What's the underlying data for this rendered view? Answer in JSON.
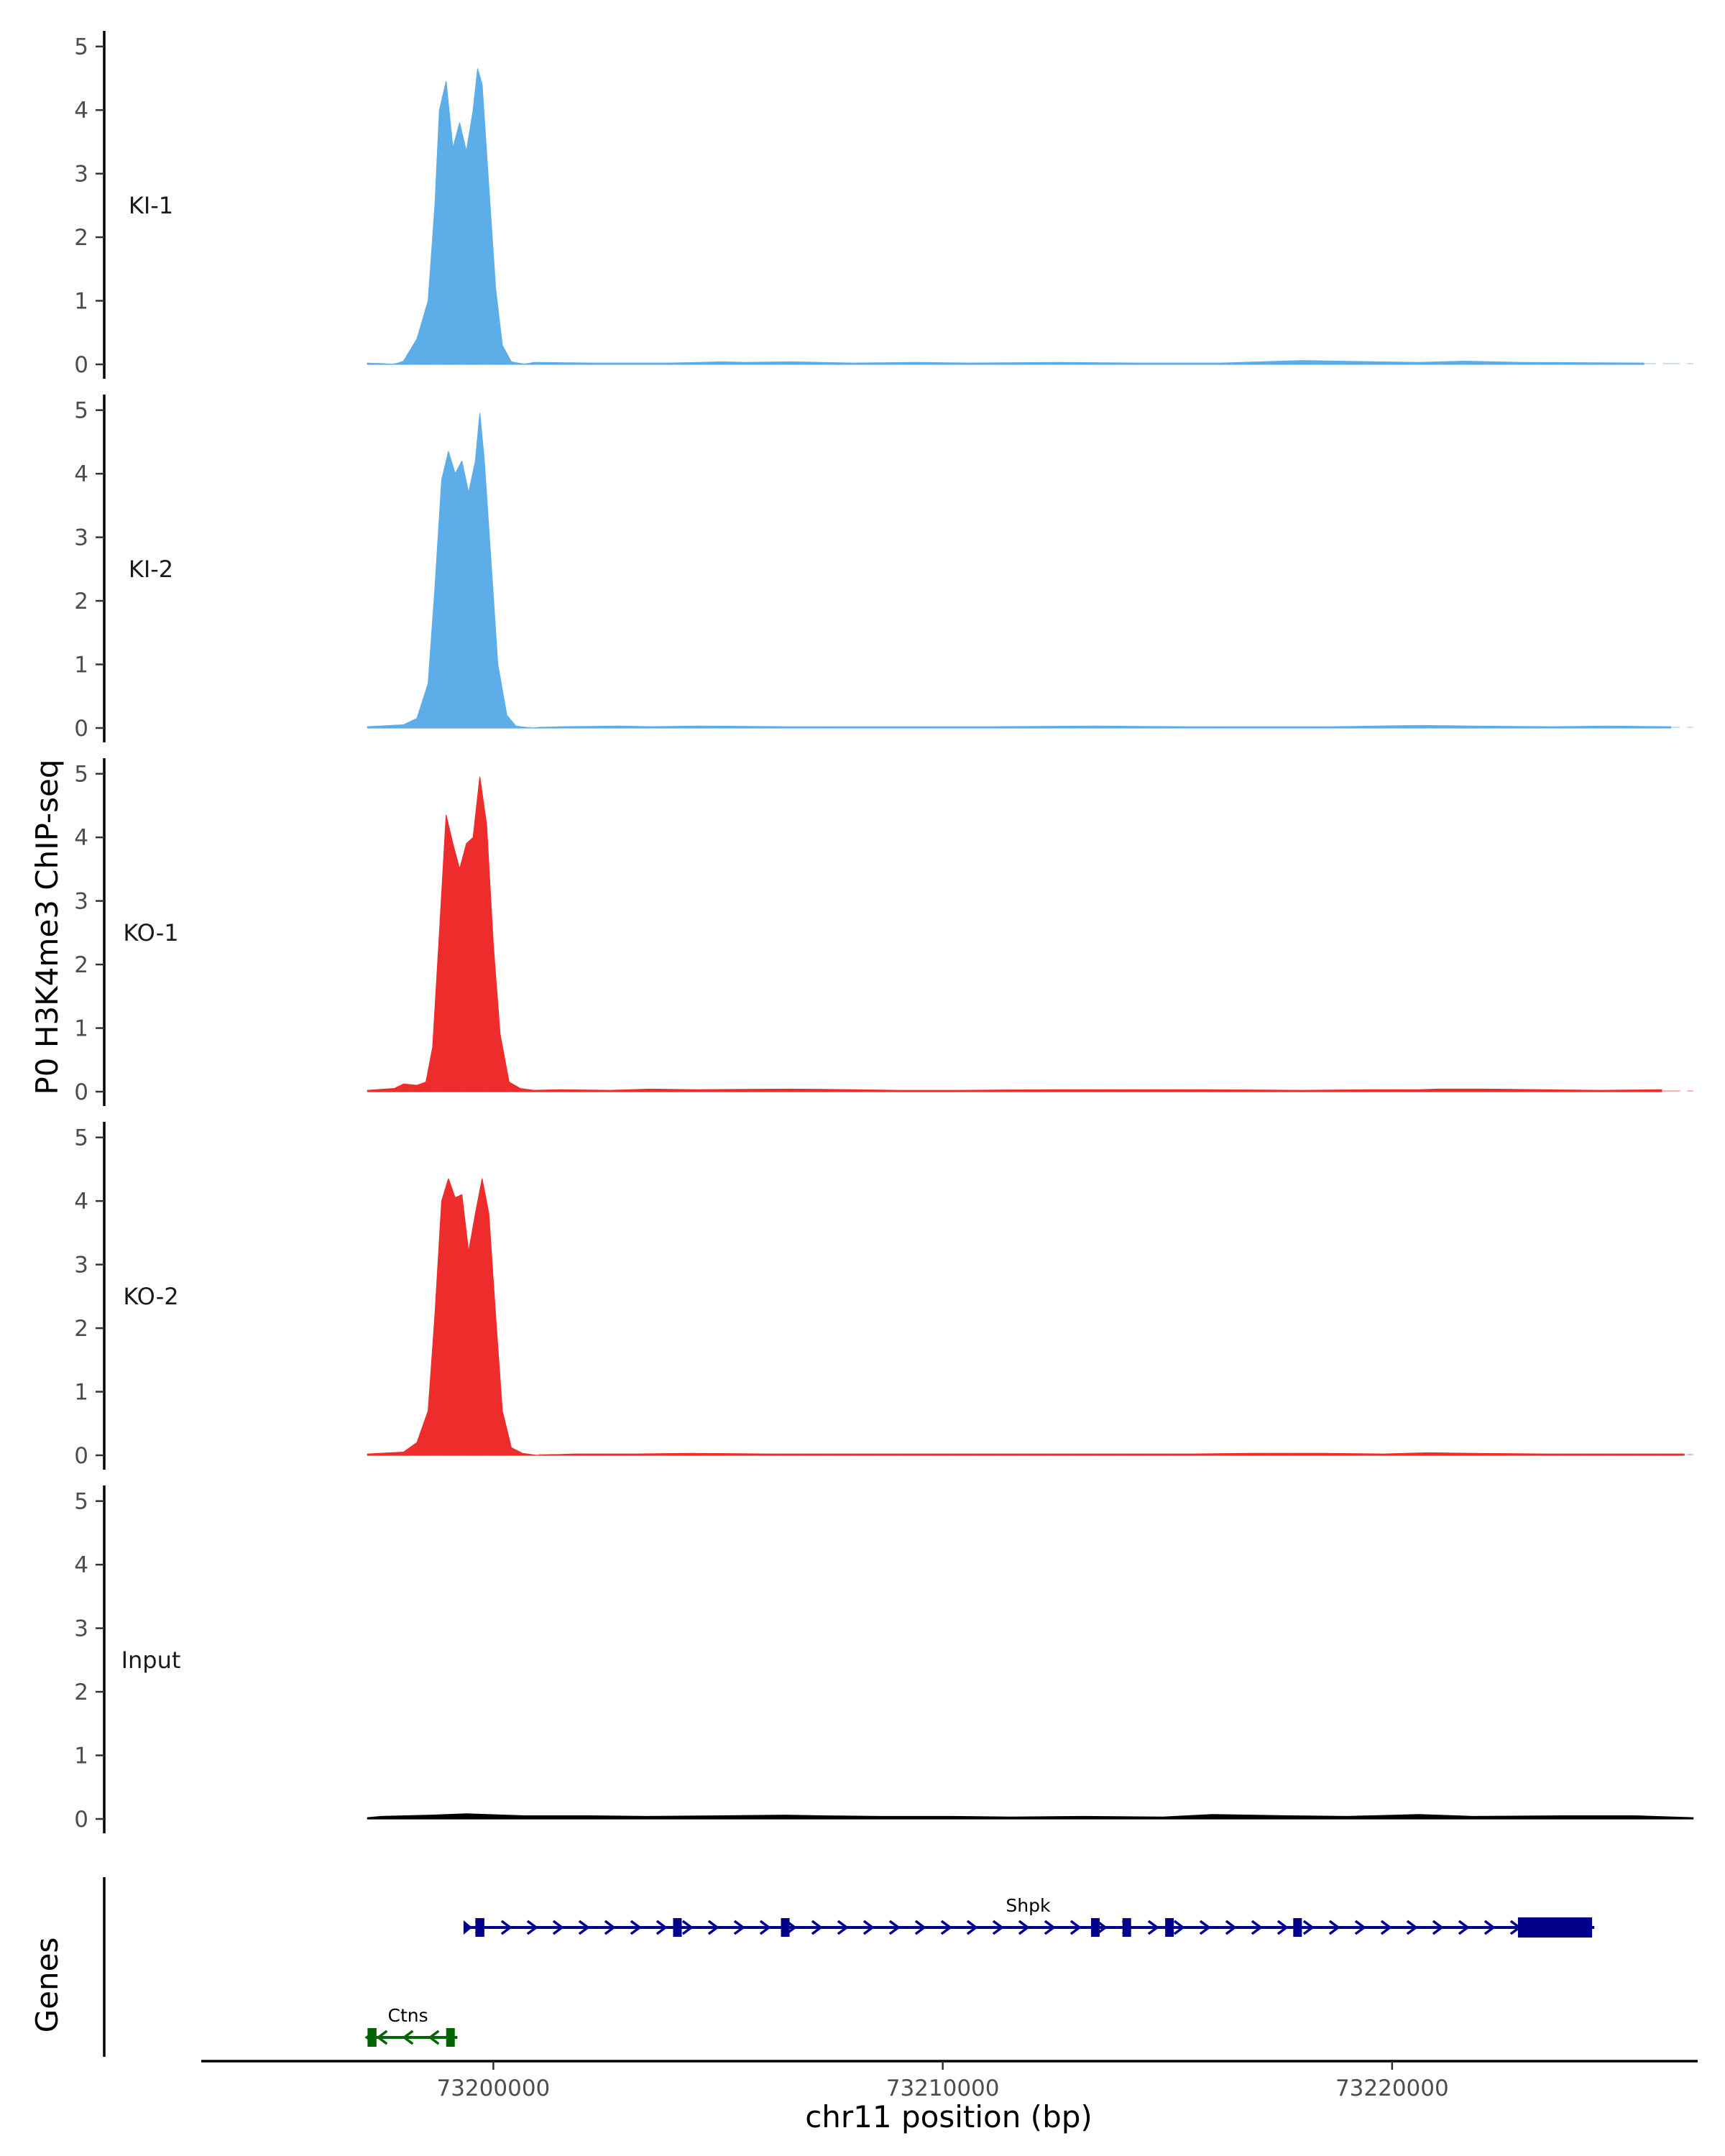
{
  "chart_data": {
    "type": "area",
    "title": "",
    "ylabel": "P0 H3K4me3 ChIP-seq",
    "xlabel": "chr11 position (bp)",
    "genes_label": "Genes",
    "xlim": [
      73193500,
      73226800
    ],
    "data_xlim": [
      73197200,
      73226700
    ],
    "ylim": [
      0,
      5.2
    ],
    "y_ticks": [
      0,
      1,
      2,
      3,
      4,
      5
    ],
    "x_ticks": [
      73200000,
      73210000,
      73220000
    ],
    "x_tick_labels": [
      "73200000",
      "73210000",
      "73220000"
    ],
    "grid": false,
    "legend": "none",
    "tracks": [
      {
        "name": "KI-1",
        "color": "#5dade9",
        "peak": [
          [
            73197800,
            0
          ],
          [
            73198000,
            0.05
          ],
          [
            73198300,
            0.4
          ],
          [
            73198550,
            1.0
          ],
          [
            73198700,
            2.5
          ],
          [
            73198800,
            4.0
          ],
          [
            73198950,
            4.45
          ],
          [
            73199100,
            3.4
          ],
          [
            73199250,
            3.8
          ],
          [
            73199400,
            3.35
          ],
          [
            73199550,
            4.0
          ],
          [
            73199650,
            4.65
          ],
          [
            73199750,
            4.4
          ],
          [
            73199900,
            2.8
          ],
          [
            73200050,
            1.2
          ],
          [
            73200200,
            0.3
          ],
          [
            73200400,
            0.04
          ],
          [
            73200700,
            0
          ]
        ],
        "noise": [
          [
            73197200,
            0.02
          ],
          [
            73200900,
            0.03
          ],
          [
            73202200,
            0.02
          ],
          [
            73203900,
            0.02
          ],
          [
            73204600,
            0.03
          ],
          [
            73205100,
            0.04
          ],
          [
            73205600,
            0.03
          ],
          [
            73206600,
            0.04
          ],
          [
            73208000,
            0.02
          ],
          [
            73209500,
            0.03
          ],
          [
            73210600,
            0.02
          ],
          [
            73212600,
            0.03
          ],
          [
            73214300,
            0.02
          ],
          [
            73215100,
            0.02
          ],
          [
            73216200,
            0.02
          ],
          [
            73218000,
            0.06
          ],
          [
            73219600,
            0.04
          ],
          [
            73220600,
            0.03
          ],
          [
            73221600,
            0.05
          ],
          [
            73222900,
            0.03
          ],
          [
            73225600,
            0.02
          ]
        ]
      },
      {
        "name": "KI-2",
        "color": "#5dade9",
        "peak": [
          [
            73197200,
            0.02
          ],
          [
            73198000,
            0.05
          ],
          [
            73198300,
            0.15
          ],
          [
            73198550,
            0.7
          ],
          [
            73198700,
            2.2
          ],
          [
            73198850,
            3.9
          ],
          [
            73199000,
            4.35
          ],
          [
            73199150,
            4.0
          ],
          [
            73199300,
            4.2
          ],
          [
            73199450,
            3.7
          ],
          [
            73199600,
            4.2
          ],
          [
            73199700,
            4.95
          ],
          [
            73199800,
            4.2
          ],
          [
            73199950,
            2.6
          ],
          [
            73200100,
            1.0
          ],
          [
            73200300,
            0.2
          ],
          [
            73200500,
            0.03
          ],
          [
            73200800,
            0
          ]
        ],
        "noise": [
          [
            73201500,
            0.02
          ],
          [
            73202800,
            0.03
          ],
          [
            73203500,
            0.02
          ],
          [
            73204500,
            0.03
          ],
          [
            73206500,
            0.02
          ],
          [
            73208000,
            0.02
          ],
          [
            73209200,
            0.02
          ],
          [
            73211100,
            0.02
          ],
          [
            73213400,
            0.03
          ],
          [
            73215400,
            0.02
          ],
          [
            73217000,
            0.02
          ],
          [
            73218700,
            0.02
          ],
          [
            73220600,
            0.04
          ],
          [
            73221800,
            0.03
          ],
          [
            73223600,
            0.02
          ],
          [
            73224800,
            0.03
          ],
          [
            73226200,
            0.02
          ]
        ]
      },
      {
        "name": "KO-1",
        "color": "#ee2c2c",
        "peak": [
          [
            73197200,
            0.02
          ],
          [
            73197800,
            0.05
          ],
          [
            73198000,
            0.12
          ],
          [
            73198300,
            0.1
          ],
          [
            73198500,
            0.15
          ],
          [
            73198650,
            0.7
          ],
          [
            73198800,
            2.5
          ],
          [
            73198950,
            4.35
          ],
          [
            73199100,
            3.9
          ],
          [
            73199250,
            3.5
          ],
          [
            73199400,
            3.9
          ],
          [
            73199550,
            4.0
          ],
          [
            73199700,
            4.95
          ],
          [
            73199850,
            4.2
          ],
          [
            73200000,
            2.3
          ],
          [
            73200150,
            0.9
          ],
          [
            73200350,
            0.15
          ],
          [
            73200600,
            0.05
          ],
          [
            73200900,
            0.02
          ]
        ],
        "noise": [
          [
            73201500,
            0.03
          ],
          [
            73202600,
            0.02
          ],
          [
            73203500,
            0.04
          ],
          [
            73204500,
            0.03
          ],
          [
            73206600,
            0.04
          ],
          [
            73208000,
            0.03
          ],
          [
            73209000,
            0.02
          ],
          [
            73210400,
            0.02
          ],
          [
            73212500,
            0.03
          ],
          [
            73214100,
            0.03
          ],
          [
            73215800,
            0.03
          ],
          [
            73218000,
            0.02
          ],
          [
            73219500,
            0.03
          ],
          [
            73220600,
            0.03
          ],
          [
            73221000,
            0.04
          ],
          [
            73222100,
            0.04
          ],
          [
            73224600,
            0.02
          ],
          [
            73226000,
            0.03
          ]
        ]
      },
      {
        "name": "KO-2",
        "color": "#ee2c2c",
        "peak": [
          [
            73197200,
            0.02
          ],
          [
            73198000,
            0.05
          ],
          [
            73198300,
            0.2
          ],
          [
            73198550,
            0.7
          ],
          [
            73198700,
            2.2
          ],
          [
            73198850,
            4.0
          ],
          [
            73199000,
            4.35
          ],
          [
            73199150,
            4.05
          ],
          [
            73199300,
            4.1
          ],
          [
            73199450,
            3.2
          ],
          [
            73199600,
            3.8
          ],
          [
            73199750,
            4.35
          ],
          [
            73199900,
            3.8
          ],
          [
            73200050,
            2.2
          ],
          [
            73200200,
            0.7
          ],
          [
            73200400,
            0.12
          ],
          [
            73200650,
            0.03
          ],
          [
            73200950,
            0
          ]
        ],
        "noise": [
          [
            73201800,
            0.02
          ],
          [
            73203100,
            0.02
          ],
          [
            73204400,
            0.03
          ],
          [
            73206200,
            0.02
          ],
          [
            73207900,
            0.02
          ],
          [
            73209000,
            0.02
          ],
          [
            73211100,
            0.02
          ],
          [
            73212500,
            0.02
          ],
          [
            73214500,
            0.02
          ],
          [
            73215500,
            0.02
          ],
          [
            73216800,
            0.03
          ],
          [
            73218500,
            0.03
          ],
          [
            73219800,
            0.02
          ],
          [
            73220800,
            0.04
          ],
          [
            73221800,
            0.03
          ],
          [
            73223500,
            0.02
          ],
          [
            73225600,
            0.02
          ],
          [
            73226500,
            0.02
          ]
        ]
      },
      {
        "name": "Input",
        "color": "#000000",
        "peak": [
          [
            73197200,
            0.02
          ]
        ],
        "noise": [
          [
            73197500,
            0.04
          ],
          [
            73198600,
            0.06
          ],
          [
            73199400,
            0.08
          ],
          [
            73200700,
            0.05
          ],
          [
            73202100,
            0.05
          ],
          [
            73203400,
            0.04
          ],
          [
            73205100,
            0.05
          ],
          [
            73206500,
            0.06
          ],
          [
            73207300,
            0.05
          ],
          [
            73208600,
            0.04
          ],
          [
            73210200,
            0.04
          ],
          [
            73211500,
            0.03
          ],
          [
            73213100,
            0.04
          ],
          [
            73214900,
            0.03
          ],
          [
            73216000,
            0.07
          ],
          [
            73217700,
            0.05
          ],
          [
            73219000,
            0.04
          ],
          [
            73220600,
            0.07
          ],
          [
            73221800,
            0.04
          ],
          [
            73223800,
            0.05
          ],
          [
            73225400,
            0.05
          ],
          [
            73226700,
            0.02
          ]
        ]
      }
    ],
    "genes": [
      {
        "name": "Shpk",
        "color": "#00008b",
        "strand": "+",
        "start": 73199400,
        "end": 73224500,
        "exons": [
          [
            73199600,
            73199800,
            "thin"
          ],
          [
            73204000,
            73204100,
            "thin"
          ],
          [
            73206400,
            73206550,
            "thin"
          ],
          [
            73213300,
            73213450,
            "thin"
          ],
          [
            73214000,
            73214100,
            "thin"
          ],
          [
            73214950,
            73215050,
            "thin"
          ],
          [
            73217800,
            73217950,
            "thin"
          ],
          [
            73222800,
            73224450,
            "thick"
          ]
        ]
      },
      {
        "name": "Ctns",
        "color": "#006400",
        "strand": "-",
        "start": 73197200,
        "end": 73199200,
        "exons": [
          [
            73197200,
            73197400,
            "thin"
          ],
          [
            73198950,
            73199050,
            "thin"
          ]
        ]
      }
    ]
  }
}
